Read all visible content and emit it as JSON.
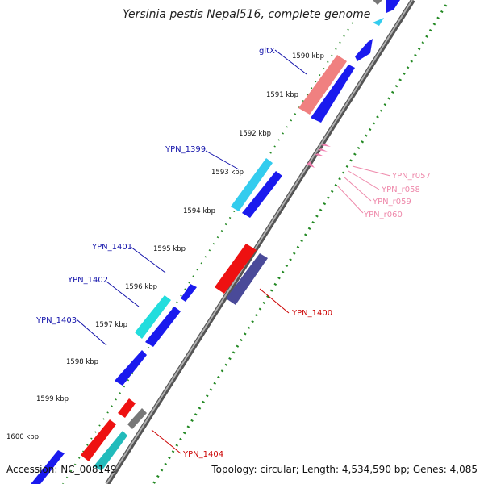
{
  "title": "Yersinia pestis Nepal516, complete genome",
  "footer": {
    "accession": "Accession: NC_008149",
    "summary": "Topology: circular; Length: 4,534,590 bp; Genes: 4,085"
  },
  "scale_labels": [
    "1590 kbp",
    "1591 kbp",
    "1592 kbp",
    "1593 kbp",
    "1594 kbp",
    "1595 kbp",
    "1596 kbp",
    "1597 kbp",
    "1598 kbp",
    "1599 kbp",
    "1600 kbp"
  ],
  "gene_labels": {
    "gltX": "gltX",
    "YPN_1399": "YPN_1399",
    "YPN_1401": "YPN_1401",
    "YPN_1402": "YPN_1402",
    "YPN_1403": "YPN_1403",
    "YPN_1400": "YPN_1400",
    "YPN_1404": "YPN_1404",
    "YPN_r057": "YPN_r057",
    "YPN_r058": "YPN_r058",
    "YPN_r059": "YPN_r059",
    "YPN_r060": "YPN_r060"
  },
  "colors": {
    "backbone": "#8a8a8a",
    "cds": "#1a1aee",
    "trna_synthetase": "#f08080",
    "cyan": "#33ccee",
    "red": "#ee1111",
    "purple": "#4a4a99",
    "gray": "#777777",
    "teal": "#22bbbb",
    "rrna": "#f080b0",
    "scale_dots": "#228822",
    "label_blue": "#1111aa",
    "label_red": "#cc0000",
    "label_pink": "#ee88aa"
  }
}
